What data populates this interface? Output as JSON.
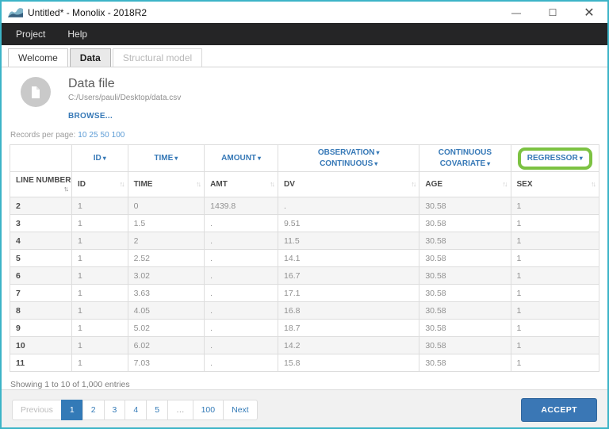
{
  "window": {
    "title": "Untitled* - Monolix - 2018R2",
    "controls": {
      "minimize": "—",
      "maximize": "☐",
      "close": "✕"
    }
  },
  "menu": {
    "items": [
      "Project",
      "Help"
    ]
  },
  "tabs": [
    {
      "label": "Welcome",
      "state": "normal"
    },
    {
      "label": "Data",
      "state": "active"
    },
    {
      "label": "Structural model",
      "state": "disabled"
    }
  ],
  "file_card": {
    "title": "Data file",
    "path": "C:/Users/pauli/Desktop/data.csv",
    "browse_label": "BROWSE..."
  },
  "records_per_page": {
    "label": "Records per page:",
    "options": [
      "10",
      "25",
      "50",
      "100"
    ]
  },
  "icons": {
    "caret": "▾",
    "sort_asc": "↑",
    "sort_desc": "↓"
  },
  "table": {
    "type_headers": [
      {
        "dropdowns": []
      },
      {
        "dropdowns": [
          "ID"
        ]
      },
      {
        "dropdowns": [
          "TIME"
        ]
      },
      {
        "dropdowns": [
          "AMOUNT"
        ]
      },
      {
        "dropdowns": [
          "OBSERVATION",
          "CONTINUOUS"
        ]
      },
      {
        "dropdowns": [
          "CONTINUOUS COVARIATE"
        ]
      },
      {
        "dropdowns": [
          "REGRESSOR"
        ],
        "highlighted": true
      }
    ],
    "columns": [
      "LINE NUMBER",
      "ID",
      "TIME",
      "AMT",
      "DV",
      "AGE",
      "SEX"
    ],
    "rows": [
      [
        "2",
        "1",
        "0",
        "1439.8",
        ".",
        "30.58",
        "1"
      ],
      [
        "3",
        "1",
        "1.5",
        ".",
        "9.51",
        "30.58",
        "1"
      ],
      [
        "4",
        "1",
        "2",
        ".",
        "11.5",
        "30.58",
        "1"
      ],
      [
        "5",
        "1",
        "2.52",
        ".",
        "14.1",
        "30.58",
        "1"
      ],
      [
        "6",
        "1",
        "3.02",
        ".",
        "16.7",
        "30.58",
        "1"
      ],
      [
        "7",
        "1",
        "3.63",
        ".",
        "17.1",
        "30.58",
        "1"
      ],
      [
        "8",
        "1",
        "4.05",
        ".",
        "16.8",
        "30.58",
        "1"
      ],
      [
        "9",
        "1",
        "5.02",
        ".",
        "18.7",
        "30.58",
        "1"
      ],
      [
        "10",
        "1",
        "6.02",
        ".",
        "14.2",
        "30.58",
        "1"
      ],
      [
        "11",
        "1",
        "7.03",
        ".",
        "15.8",
        "30.58",
        "1"
      ]
    ]
  },
  "summary": "Showing 1 to 10 of 1,000 entries",
  "pagination": {
    "items": [
      "Previous",
      "1",
      "2",
      "3",
      "4",
      "5",
      "…",
      "100",
      "Next"
    ],
    "active": "1",
    "disabled": [
      "Previous"
    ],
    "non_clickable": [
      "…"
    ]
  },
  "accept_label": "ACCEPT",
  "colors": {
    "window_border": "#3cb4c7",
    "accent_blue": "#337ab7",
    "highlight_green": "#7cc242",
    "accept_button": "#3a77b5",
    "menu_bar": "#252526"
  }
}
